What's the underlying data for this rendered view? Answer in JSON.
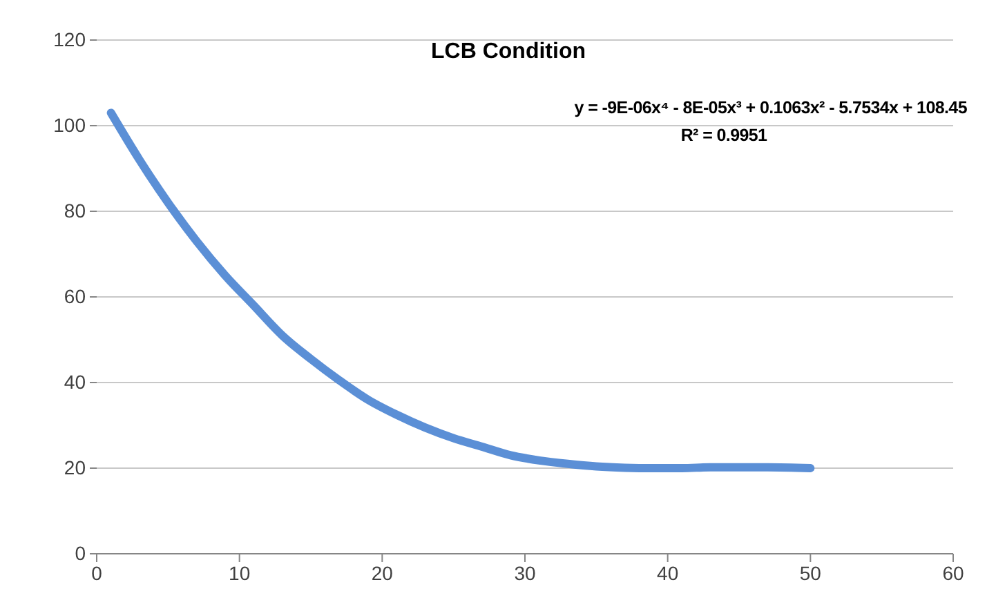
{
  "chart_data": {
    "type": "line",
    "title": "LCB Condition",
    "annotations": [
      "y = -9E-06x⁴ - 8E-05x³ + 0.1063x² - 5.7534x + 108.45",
      "R² = 0.9951"
    ],
    "x": [
      1,
      3,
      5,
      7,
      9,
      11,
      13,
      15,
      17,
      19,
      21,
      23,
      25,
      27,
      29,
      31,
      33,
      35,
      37,
      39,
      41,
      43,
      45,
      47,
      50
    ],
    "series": [
      {
        "color": "#5b8fd6",
        "values": [
          103,
          92,
          82,
          73,
          65,
          58,
          51,
          45.5,
          40.5,
          36,
          32.5,
          29.5,
          27,
          25,
          23,
          21.8,
          21,
          20.4,
          20.1,
          20,
          20,
          20.2,
          20.2,
          20.2,
          20
        ]
      }
    ],
    "xlim": [
      0,
      60
    ],
    "xticks": [
      0,
      10,
      20,
      30,
      40,
      50,
      60
    ],
    "ylim": [
      0,
      120
    ],
    "yticks": [
      0,
      20,
      40,
      60,
      80,
      100,
      120
    ],
    "grid": "y",
    "line_style": "solid"
  }
}
